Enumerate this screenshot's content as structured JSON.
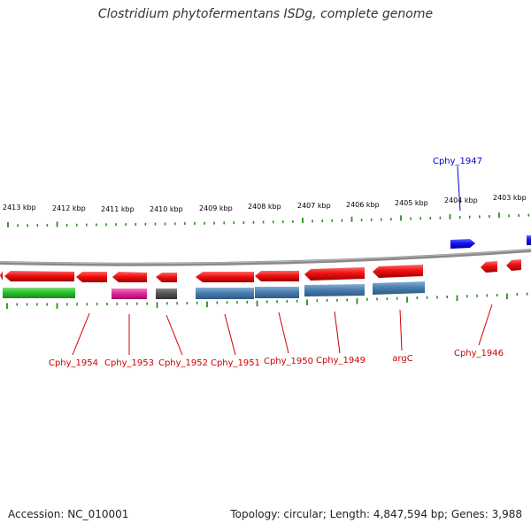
{
  "title": "Clostridium phytofermentans ISDg, complete genome",
  "footer": {
    "accession": "Accession: NC_010001",
    "summary": "Topology: circular; Length: 4,847,594 bp; Genes: 3,988"
  },
  "colors": {
    "backbone": "#888888",
    "tick": "#2e8b22",
    "tick_label": "#000000",
    "gene_red": "#ee1111",
    "gene_blue": "#1111ee",
    "gene_green": "#2bbf2b",
    "gene_magenta": "#e0279a",
    "gene_gray": "#555555",
    "gene_steelblue": "#4a7fb0",
    "label_red": "#cc0000",
    "label_blue": "#0000cc"
  },
  "scale_labels": [
    "2413 kbp",
    "2412 kbp",
    "2411 kbp",
    "2410 kbp",
    "2409 kbp",
    "2408 kbp",
    "2407 kbp",
    "2406 kbp",
    "2405 kbp",
    "2404 kbp",
    "2403 kbp"
  ],
  "gene_labels": [
    {
      "text": "Cphy_1954",
      "color": "red"
    },
    {
      "text": "Cphy_1953",
      "color": "red"
    },
    {
      "text": "Cphy_1952",
      "color": "red"
    },
    {
      "text": "Cphy_1951",
      "color": "red"
    },
    {
      "text": "Cphy_1950",
      "color": "red"
    },
    {
      "text": "Cphy_1949",
      "color": "red"
    },
    {
      "text": "argC",
      "color": "red"
    },
    {
      "text": "Cphy_1946",
      "color": "red"
    },
    {
      "text": "Cphy_1947",
      "color": "blue"
    }
  ]
}
